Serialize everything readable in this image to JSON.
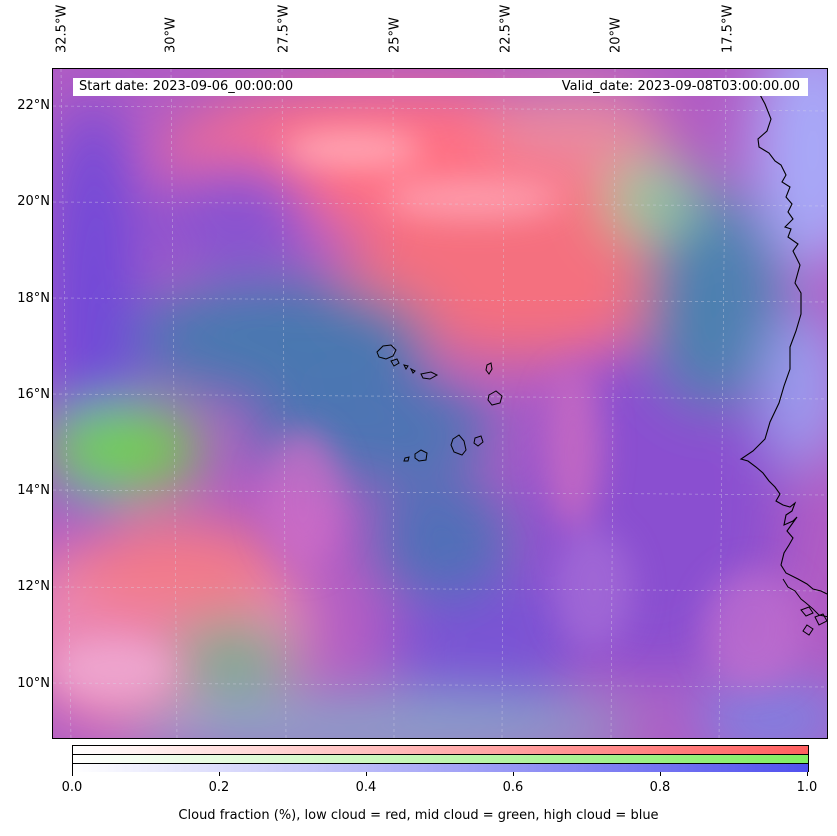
{
  "map": {
    "lon_labels": [
      "32.5°W",
      "30°W",
      "27.5°W",
      "25°W",
      "22.5°W",
      "20°W",
      "17.5°W"
    ],
    "lat_labels": [
      "22°N",
      "20°N",
      "18°N",
      "16°N",
      "14°N",
      "12°N",
      "10°N"
    ],
    "start_date": "Start date: 2023-09-06_00:00:00",
    "valid_date": "Valid_date: 2023-09-08T03:00:00.00",
    "extent": {
      "lon": [
        -32.7,
        -15.8
      ],
      "lat": [
        8.9,
        22.8
      ]
    }
  },
  "colorbar": {
    "ticks": [
      "0.0",
      "0.2",
      "0.4",
      "0.6",
      "0.8",
      "1.0"
    ],
    "label": "Cloud fraction (%), low cloud = red, mid cloud = green, high cloud = blue",
    "low_color": "#ff6060",
    "mid_color": "#80ee60",
    "high_color": "#5050ee"
  }
}
